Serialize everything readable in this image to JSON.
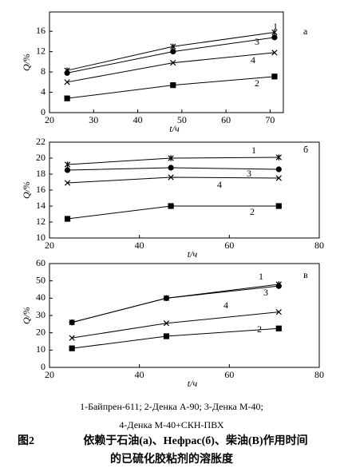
{
  "chart_data": [
    {
      "type": "line",
      "panel_label": "а",
      "xlabel": "t/ч",
      "ylabel": "Q/%",
      "xlim": [
        20,
        73
      ],
      "xticks": [
        20,
        30,
        40,
        50,
        60,
        70
      ],
      "ylim": [
        0,
        19.8
      ],
      "yticks": [
        0,
        4,
        8,
        12,
        16
      ],
      "series": [
        {
          "name": "1",
          "color": "#000000",
          "marker": "asterisk",
          "x": [
            24,
            48,
            71
          ],
          "values": [
            8.3,
            13,
            15.8
          ]
        },
        {
          "name": "3",
          "color": "#000000",
          "marker": "circle",
          "x": [
            24,
            48,
            71
          ],
          "values": [
            7.8,
            12,
            14.8
          ]
        },
        {
          "name": "4",
          "color": "#000000",
          "marker": "x",
          "x": [
            24,
            48,
            71
          ],
          "values": [
            6,
            9.8,
            11.8
          ]
        },
        {
          "name": "2",
          "color": "#000000",
          "marker": "square",
          "x": [
            24,
            48,
            71
          ],
          "values": [
            2.8,
            5.4,
            7.1
          ]
        }
      ]
    },
    {
      "type": "line",
      "panel_label": "б",
      "xlabel": "t/ч",
      "ylabel": "Q/%",
      "xlim": [
        20,
        80
      ],
      "xticks": [
        20,
        40,
        60,
        80
      ],
      "ylim": [
        10,
        22
      ],
      "yticks": [
        10,
        12,
        14,
        16,
        18,
        20,
        22
      ],
      "series": [
        {
          "name": "1",
          "color": "#000000",
          "marker": "asterisk",
          "x": [
            24,
            47,
            71
          ],
          "values": [
            19.2,
            20,
            20.1
          ]
        },
        {
          "name": "3",
          "color": "#000000",
          "marker": "circle",
          "x": [
            24,
            47,
            71
          ],
          "values": [
            18.5,
            18.8,
            18.6
          ]
        },
        {
          "name": "4",
          "color": "#000000",
          "marker": "x",
          "x": [
            24,
            47,
            71
          ],
          "values": [
            16.9,
            17.6,
            17.5
          ]
        },
        {
          "name": "2",
          "color": "#000000",
          "marker": "square",
          "x": [
            24,
            47,
            71
          ],
          "values": [
            12.4,
            14,
            14
          ]
        }
      ]
    },
    {
      "type": "line",
      "panel_label": "в",
      "xlabel": "t/ч",
      "ylabel": "Q/%",
      "xlim": [
        20,
        80
      ],
      "xticks": [
        20,
        40,
        60,
        80
      ],
      "ylim": [
        0,
        60
      ],
      "yticks": [
        0,
        10,
        20,
        30,
        40,
        50,
        60
      ],
      "series": [
        {
          "name": "1",
          "color": "#000000",
          "marker": "asterisk",
          "x": [
            25,
            46,
            71
          ],
          "values": [
            26,
            40,
            48
          ]
        },
        {
          "name": "3",
          "color": "#000000",
          "marker": "circle",
          "x": [
            25,
            46,
            71
          ],
          "values": [
            26,
            40,
            47
          ]
        },
        {
          "name": "4",
          "color": "#000000",
          "marker": "x",
          "x": [
            25,
            46,
            71
          ],
          "values": [
            17,
            25.5,
            32
          ]
        },
        {
          "name": "2",
          "color": "#000000",
          "marker": "square",
          "x": [
            25,
            46,
            71
          ],
          "values": [
            11,
            18,
            22.5
          ]
        }
      ]
    }
  ],
  "legend_lines": [
    "1-Байпрен-611; 2-Денка А-90; 3-Денка М-40;",
    "4-Денка М-40+СКН-ПВХ"
  ],
  "caption": {
    "number": "图2",
    "text_line1": "依赖于石油(а)、Нефрас(б)、柴油(В)作用时间",
    "text_line2": "的已硫化胶粘剂的溶胀度"
  }
}
